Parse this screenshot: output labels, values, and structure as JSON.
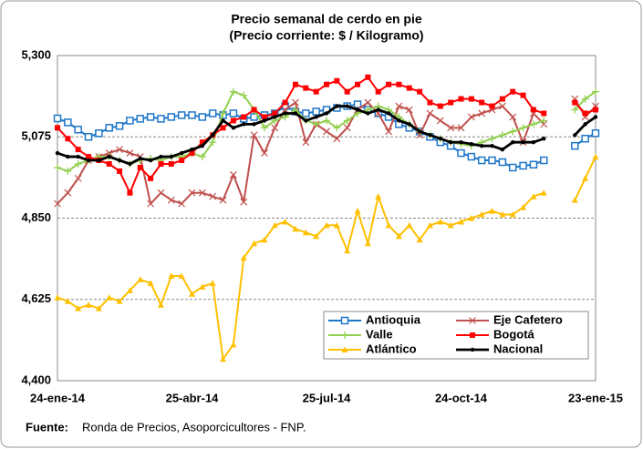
{
  "chart_data": {
    "type": "line",
    "title": "Precio semanal de cerdo en pie",
    "subtitle": "(Precio corriente: $ / Kilogramo)",
    "source_label": "Fuente:",
    "source": "Ronda de Precios, Asoporcicultores  - FNP.",
    "categories": [
      "24-ene-14",
      null,
      null,
      null,
      null,
      null,
      null,
      null,
      null,
      null,
      null,
      null,
      null,
      "25-abr-14",
      null,
      null,
      null,
      null,
      null,
      null,
      null,
      null,
      null,
      null,
      null,
      null,
      "25-jul-14",
      null,
      null,
      null,
      null,
      null,
      null,
      null,
      null,
      null,
      null,
      null,
      null,
      "24-oct-14",
      null,
      null,
      null,
      null,
      null,
      null,
      null,
      null,
      null,
      null,
      null,
      null,
      "23-ene-15"
    ],
    "ylim": [
      4400,
      5300
    ],
    "yticks": [
      {
        "value": 4400,
        "label": "4,400"
      },
      {
        "value": 4625,
        "label": "4,625"
      },
      {
        "value": 4850,
        "label": "4,850"
      },
      {
        "value": 5075,
        "label": "5,075"
      },
      {
        "value": 5300,
        "label": "5,300"
      }
    ],
    "grid": true,
    "legend": "lower-right",
    "series": [
      {
        "name": "Antioquia",
        "color": "#1f77c8",
        "marker": "square-open",
        "values": [
          5126,
          5115,
          5095,
          5075,
          5085,
          5100,
          5105,
          5120,
          5125,
          5130,
          5125,
          5130,
          5135,
          5135,
          5130,
          5140,
          5135,
          5140,
          5125,
          5130,
          5135,
          5140,
          5160,
          5145,
          5140,
          5145,
          5150,
          5155,
          5160,
          5165,
          5150,
          5140,
          5130,
          5110,
          5100,
          5090,
          5075,
          5060,
          5050,
          5030,
          5020,
          5010,
          5010,
          5005,
          4990,
          4995,
          4998,
          5010,
          null,
          null,
          5050,
          5070,
          5085
        ]
      },
      {
        "name": "Eje Cafetero",
        "color": "#c0504d",
        "marker": "x",
        "values": [
          4890,
          4920,
          4960,
          5010,
          5020,
          5030,
          5040,
          5030,
          5020,
          4890,
          4920,
          4900,
          4890,
          4920,
          4920,
          4910,
          4900,
          4970,
          4895,
          5080,
          5030,
          5100,
          5150,
          5170,
          5060,
          5110,
          5090,
          5070,
          5100,
          5150,
          5170,
          5140,
          5090,
          5160,
          5150,
          5080,
          5140,
          5120,
          5100,
          5100,
          5130,
          5140,
          5150,
          5160,
          5130,
          5060,
          5140,
          5110,
          null,
          null,
          5180,
          5130,
          5160
        ]
      },
      {
        "name": "Valle",
        "color": "#92d050",
        "marker": "plus",
        "values": [
          4990,
          4980,
          5000,
          5010,
          5020,
          5020,
          5010,
          5000,
          5010,
          5015,
          5010,
          5020,
          5020,
          5030,
          5020,
          5060,
          5140,
          5200,
          5190,
          5150,
          5100,
          5120,
          5130,
          5150,
          5120,
          5110,
          5120,
          5100,
          5120,
          5140,
          5150,
          5160,
          5150,
          5130,
          5110,
          5090,
          5080,
          5070,
          5060,
          5055,
          5050,
          5060,
          5070,
          5080,
          5090,
          5100,
          5110,
          5120,
          null,
          null,
          5150,
          5180,
          5200
        ]
      },
      {
        "name": "Bogotá",
        "color": "#ff0000",
        "marker": "square",
        "values": [
          5100,
          5070,
          5040,
          5020,
          5010,
          5000,
          4980,
          4920,
          4990,
          4960,
          5000,
          5000,
          5010,
          5030,
          5060,
          5080,
          5100,
          5120,
          5130,
          5150,
          5130,
          5140,
          5170,
          5220,
          5210,
          5200,
          5220,
          5230,
          5200,
          5220,
          5240,
          5200,
          5220,
          5220,
          5210,
          5200,
          5170,
          5160,
          5170,
          5180,
          5180,
          5170,
          5160,
          5180,
          5200,
          5190,
          5150,
          5140,
          null,
          null,
          5170,
          5140,
          5150
        ]
      },
      {
        "name": "Atlántico",
        "color": "#ffc000",
        "marker": "triangle",
        "values": [
          4630,
          4620,
          4600,
          4610,
          4600,
          4630,
          4620,
          4650,
          4680,
          4670,
          4610,
          4690,
          4690,
          4640,
          4660,
          4670,
          4460,
          4500,
          4740,
          4780,
          4790,
          4830,
          4840,
          4820,
          4810,
          4800,
          4830,
          4830,
          4760,
          4870,
          4780,
          4910,
          4830,
          4800,
          4830,
          4790,
          4830,
          4840,
          4830,
          4840,
          4850,
          4860,
          4870,
          4860,
          4860,
          4880,
          4910,
          4920,
          null,
          null,
          4900,
          4960,
          5020
        ]
      },
      {
        "name": "Nacional",
        "color": "#000000",
        "marker": "dot",
        "values": [
          5030,
          5020,
          5020,
          5010,
          5010,
          5020,
          5010,
          5000,
          5015,
          5010,
          5020,
          5020,
          5030,
          5040,
          5050,
          5080,
          5120,
          5100,
          5110,
          5110,
          5120,
          5130,
          5140,
          5140,
          5120,
          5130,
          5140,
          5160,
          5160,
          5150,
          5140,
          5150,
          5140,
          5120,
          5110,
          5090,
          5080,
          5070,
          5060,
          5060,
          5055,
          5050,
          5050,
          5040,
          5060,
          5060,
          5060,
          5070,
          null,
          null,
          5080,
          5110,
          5130
        ]
      }
    ]
  }
}
